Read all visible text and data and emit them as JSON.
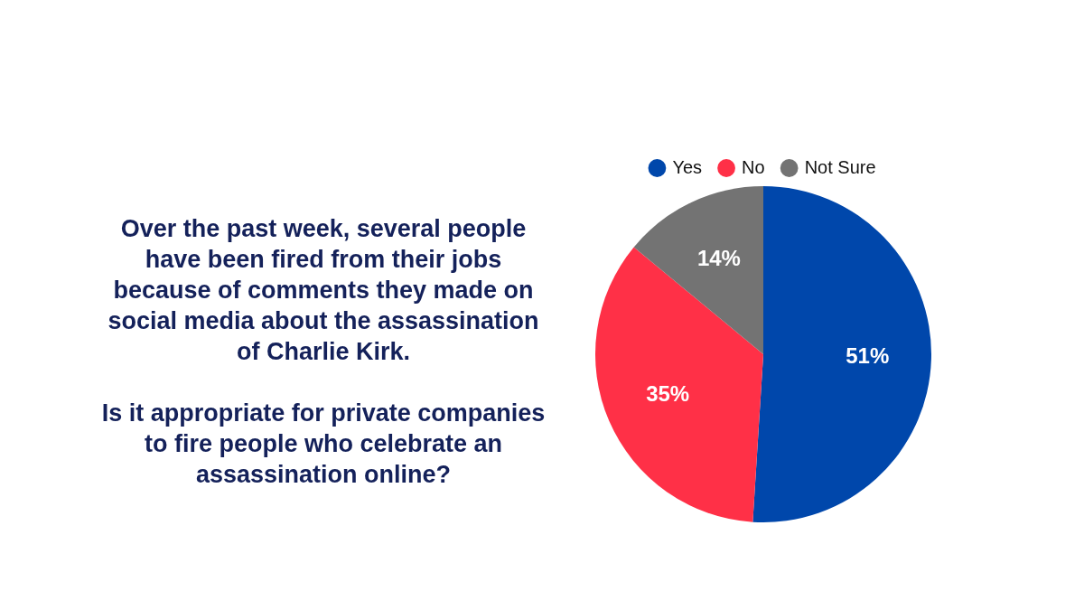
{
  "chart_data": {
    "type": "pie",
    "title": "Over the past week, several people have been fired from their jobs because of comments they made on social media about the assassination of Charlie Kirk.",
    "subtitle": "Is it appropriate for private companies to fire people who celebrate an assassination online?",
    "categories": [
      "Yes",
      "No",
      "Not Sure"
    ],
    "values": [
      51,
      35,
      14
    ],
    "colors": [
      "#0047ab",
      "#ff3047",
      "#737373"
    ],
    "value_labels": [
      "51%",
      "35%",
      "14%"
    ],
    "legend": "top"
  }
}
